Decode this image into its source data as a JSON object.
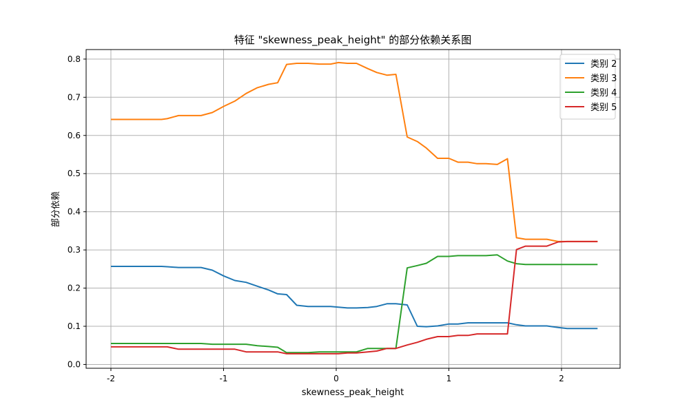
{
  "chart_data": {
    "type": "line",
    "title": "特征 \"skewness_peak_height\" 的部分依赖关系图",
    "xlabel": "skewness_peak_height",
    "ylabel": "部分依赖",
    "xlim": [
      -2.22,
      2.52
    ],
    "ylim": [
      -0.01,
      0.825
    ],
    "xticks": [
      -2,
      -1,
      0,
      1,
      2
    ],
    "xtick_labels": [
      "-2",
      "-1",
      "0",
      "1",
      "2"
    ],
    "yticks": [
      0.0,
      0.1,
      0.2,
      0.3,
      0.4,
      0.5,
      0.6,
      0.7,
      0.8
    ],
    "ytick_labels": [
      "0.0",
      "0.1",
      "0.2",
      "0.3",
      "0.4",
      "0.5",
      "0.6",
      "0.7",
      "0.8"
    ],
    "grid": true,
    "legend_position": "top-right",
    "x": [
      -2.0,
      -1.9,
      -1.8,
      -1.7,
      -1.6,
      -1.55,
      -1.5,
      -1.4,
      -1.3,
      -1.2,
      -1.1,
      -1.0,
      -0.9,
      -0.8,
      -0.7,
      -0.6,
      -0.52,
      -0.44,
      -0.35,
      -0.25,
      -0.15,
      -0.05,
      0.02,
      0.1,
      0.18,
      0.28,
      0.36,
      0.45,
      0.53,
      0.63,
      0.72,
      0.8,
      0.9,
      1.0,
      1.08,
      1.17,
      1.25,
      1.33,
      1.43,
      1.52,
      1.6,
      1.68,
      1.78,
      1.87,
      1.97,
      2.05,
      2.15,
      2.23,
      2.32
    ],
    "series": [
      {
        "name": "类别 2",
        "color": "#1f77b4",
        "values": [
          0.257,
          0.257,
          0.257,
          0.257,
          0.257,
          0.257,
          0.256,
          0.254,
          0.254,
          0.254,
          0.247,
          0.232,
          0.22,
          0.215,
          0.205,
          0.195,
          0.185,
          0.183,
          0.155,
          0.152,
          0.152,
          0.152,
          0.15,
          0.148,
          0.148,
          0.149,
          0.152,
          0.159,
          0.159,
          0.156,
          0.1,
          0.099,
          0.101,
          0.106,
          0.106,
          0.109,
          0.109,
          0.109,
          0.109,
          0.109,
          0.104,
          0.101,
          0.101,
          0.101,
          0.097,
          0.094,
          0.094,
          0.094,
          0.094
        ]
      },
      {
        "name": "类别 3",
        "color": "#ff7f0e",
        "values": [
          0.642,
          0.642,
          0.642,
          0.642,
          0.642,
          0.642,
          0.644,
          0.652,
          0.652,
          0.652,
          0.66,
          0.676,
          0.69,
          0.71,
          0.725,
          0.734,
          0.738,
          0.786,
          0.789,
          0.789,
          0.787,
          0.787,
          0.791,
          0.789,
          0.789,
          0.775,
          0.765,
          0.758,
          0.76,
          0.596,
          0.584,
          0.567,
          0.54,
          0.54,
          0.53,
          0.53,
          0.526,
          0.526,
          0.524,
          0.539,
          0.332,
          0.328,
          0.328,
          0.328,
          0.322,
          0.322,
          0.322,
          0.322,
          0.322
        ]
      },
      {
        "name": "类别 4",
        "color": "#2ca02c",
        "values": [
          0.055,
          0.055,
          0.055,
          0.055,
          0.055,
          0.055,
          0.055,
          0.055,
          0.055,
          0.055,
          0.053,
          0.053,
          0.053,
          0.053,
          0.049,
          0.047,
          0.045,
          0.031,
          0.031,
          0.031,
          0.033,
          0.033,
          0.033,
          0.033,
          0.033,
          0.042,
          0.042,
          0.042,
          0.042,
          0.253,
          0.259,
          0.265,
          0.283,
          0.283,
          0.285,
          0.285,
          0.285,
          0.285,
          0.287,
          0.271,
          0.264,
          0.262,
          0.262,
          0.262,
          0.262,
          0.262,
          0.262,
          0.262,
          0.262
        ]
      },
      {
        "name": "类别 5",
        "color": "#d62728",
        "values": [
          0.046,
          0.046,
          0.046,
          0.046,
          0.046,
          0.046,
          0.046,
          0.04,
          0.04,
          0.04,
          0.04,
          0.04,
          0.04,
          0.033,
          0.033,
          0.033,
          0.033,
          0.028,
          0.028,
          0.028,
          0.028,
          0.028,
          0.028,
          0.03,
          0.03,
          0.033,
          0.035,
          0.042,
          0.042,
          0.051,
          0.058,
          0.066,
          0.073,
          0.073,
          0.076,
          0.076,
          0.08,
          0.08,
          0.08,
          0.08,
          0.301,
          0.31,
          0.31,
          0.31,
          0.321,
          0.322,
          0.322,
          0.322,
          0.322
        ]
      }
    ]
  }
}
